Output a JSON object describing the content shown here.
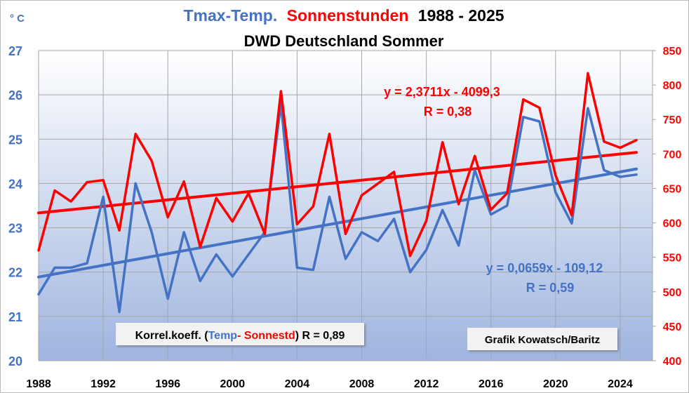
{
  "chart_data": {
    "type": "line",
    "title": {
      "part1": "Tmax-Temp.",
      "part2": "Sonnenstunden",
      "part3": "1988 - 2025",
      "line2": "DWD Deutschland Sommer"
    },
    "y_left_unit": "° C",
    "x_ticks": [
      "1988",
      "1992",
      "1996",
      "2000",
      "2004",
      "2008",
      "2012",
      "2016",
      "2020",
      "2024"
    ],
    "y_left_ticks": [
      "20",
      "21",
      "22",
      "23",
      "24",
      "25",
      "26",
      "27"
    ],
    "y_right_ticks": [
      "400",
      "450",
      "500",
      "550",
      "600",
      "650",
      "700",
      "750",
      "800",
      "850"
    ],
    "x_range": [
      1988,
      2026
    ],
    "y_left_range": [
      20,
      27
    ],
    "y_right_range": [
      400,
      850
    ],
    "grid": true,
    "x": [
      1988,
      1989,
      1990,
      1991,
      1992,
      1993,
      1994,
      1995,
      1996,
      1997,
      1998,
      1999,
      2000,
      2001,
      2002,
      2003,
      2004,
      2005,
      2006,
      2007,
      2008,
      2009,
      2010,
      2011,
      2012,
      2013,
      2014,
      2015,
      2016,
      2017,
      2018,
      2019,
      2020,
      2021,
      2022,
      2023,
      2024,
      2025
    ],
    "series": [
      {
        "axis": "left",
        "color": "#4472c4",
        "values": [
          21.5,
          22.1,
          22.1,
          22.2,
          23.7,
          21.1,
          24.0,
          22.9,
          21.4,
          22.9,
          21.8,
          22.4,
          21.9,
          22.4,
          22.9,
          25.8,
          22.1,
          22.05,
          23.7,
          22.3,
          22.9,
          22.7,
          23.2,
          22.0,
          22.5,
          23.4,
          22.6,
          24.3,
          23.3,
          23.5,
          25.5,
          25.4,
          23.8,
          23.1,
          25.7,
          24.3,
          24.15,
          24.2
        ]
      },
      {
        "axis": "right",
        "color": "#ff0000",
        "values": [
          560,
          647,
          631,
          659,
          662,
          589,
          729,
          690,
          608,
          660,
          565,
          636,
          602,
          643,
          584,
          791,
          598,
          624,
          729,
          584,
          640,
          657,
          674,
          552,
          603,
          717,
          627,
          697,
          619,
          643,
          779,
          767,
          669,
          611,
          817,
          718,
          709,
          720
        ]
      }
    ],
    "trendlines": [
      {
        "axis": "left",
        "color": "#4472c4",
        "slope": 0.0659,
        "intercept": -109.12,
        "equation": "y = 0,0659x - 109,12",
        "r": "R = 0,59"
      },
      {
        "axis": "right",
        "color": "#ff0000",
        "slope": 2.3711,
        "intercept": -4099.3,
        "equation": "y = 2,3711x - 4099,3",
        "r": "R = 0,38"
      }
    ],
    "correlation_label": {
      "prefix": "Korrel.koeff. (",
      "temp": "Temp",
      "dash": "- ",
      "sun": "Sonnestd",
      "suffix": ") R = 0,89"
    },
    "credit": "Grafik Kowatsch/Baritz"
  }
}
